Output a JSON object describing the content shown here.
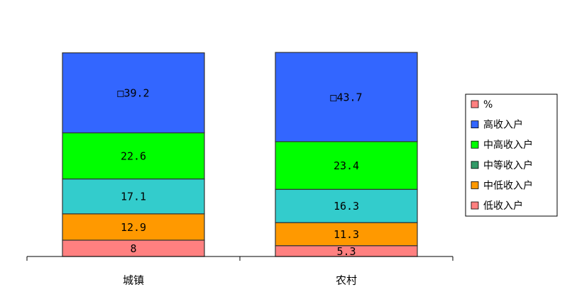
{
  "chart_data": {
    "type": "stacked_bar",
    "categories": [
      "城镇",
      "农村"
    ],
    "series": [
      {
        "name": "低收入户",
        "color": "#ff8080",
        "values": [
          8,
          5.3
        ]
      },
      {
        "name": "中低收入户",
        "color": "#ff9900",
        "values": [
          12.9,
          11.3
        ]
      },
      {
        "name": "中等收入户",
        "color": "#33cccc",
        "legend_color": "#339966",
        "values": [
          17.1,
          16.3
        ]
      },
      {
        "name": "中高收入户",
        "color": "#00ff00",
        "values": [
          22.6,
          23.4
        ]
      },
      {
        "name": "高收入户",
        "color": "#3366ff",
        "values": [
          39.2,
          43.7
        ],
        "value_labels": [
          "□39.2",
          "□43.7"
        ]
      }
    ],
    "unit_legend": {
      "name": "%",
      "color": "#ff8080"
    },
    "ylim": [
      0,
      100
    ]
  }
}
